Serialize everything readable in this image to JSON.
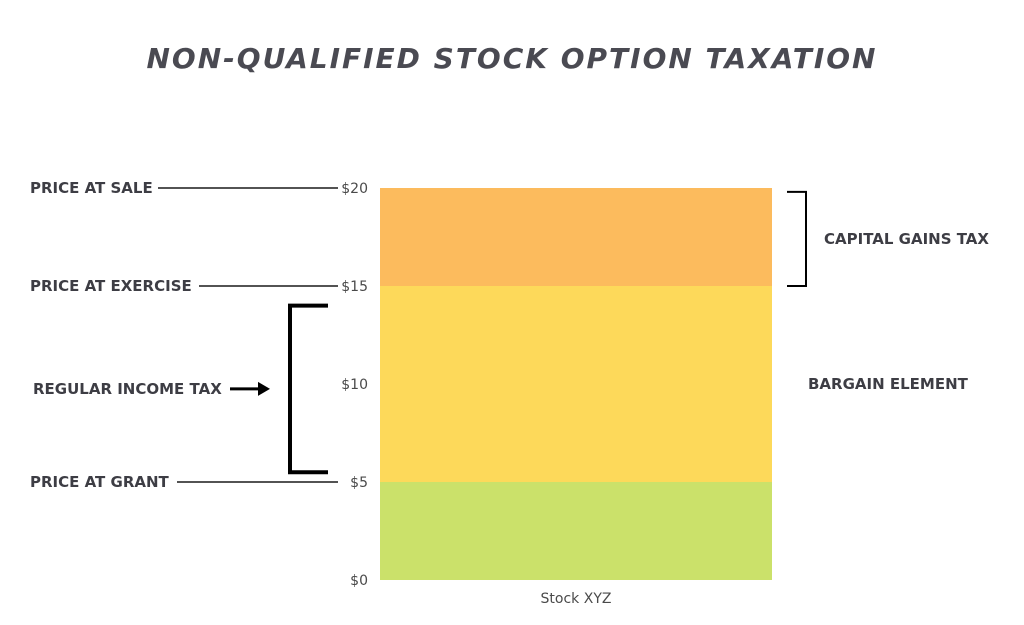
{
  "chart_data": {
    "type": "bar",
    "stacked": true,
    "title": "NON-QUALIFIED STOCK OPTION TAXATION",
    "xlabel": "",
    "ylabel": "",
    "categories": [
      "Stock XYZ"
    ],
    "ylim": [
      0,
      20
    ],
    "yticks": [
      {
        "value": 0,
        "label": "$0"
      },
      {
        "value": 5,
        "label": "$5"
      },
      {
        "value": 10,
        "label": "$10"
      },
      {
        "value": 15,
        "label": "$15"
      },
      {
        "value": 20,
        "label": "$20"
      }
    ],
    "grid": false,
    "segments": [
      {
        "from": 0,
        "to": 5,
        "color": "#cbe16a"
      },
      {
        "from": 5,
        "to": 15,
        "color": "#fdd95a"
      },
      {
        "from": 15,
        "to": 20,
        "color": "#fcbb5d"
      }
    ],
    "price_markers": [
      {
        "label": "PRICE AT SALE",
        "value": 20
      },
      {
        "label": "PRICE AT EXERCISE",
        "value": 15
      },
      {
        "label": "PRICE AT GRANT",
        "value": 5
      }
    ],
    "brackets": [
      {
        "label": "REGULAR INCOME TAX",
        "side": "left",
        "from": 5.5,
        "to": 14
      },
      {
        "label": "CAPITAL GAINS TAX",
        "side": "right",
        "from": 15,
        "to": 19.8
      }
    ],
    "segment_labels": [
      {
        "label": "BARGAIN ELEMENT",
        "value": 10,
        "side": "right"
      }
    ]
  }
}
